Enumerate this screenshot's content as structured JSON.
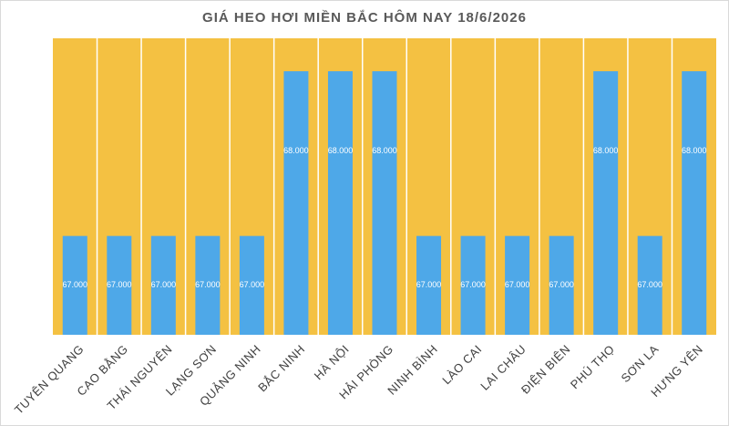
{
  "chart_data": {
    "type": "bar",
    "title": "GIÁ HEO HƠI MIỀN BẮC HÔM NAY 18/6/2026",
    "categories": [
      "TUYÊN QUANG",
      "CAO BẰNG",
      "THÁI NGUYÊN",
      "LẠNG SƠN",
      "QUẢNG NINH",
      "BẮC NINH",
      "HÀ NỘI",
      "HẢI PHÒNG",
      "NINH BÌNH",
      "LÀO CAI",
      "LAI CHÂU",
      "ĐIỆN BIÊN",
      "PHÚ THỌ",
      "SƠN LA",
      "HƯNG YÊN"
    ],
    "values": [
      67000,
      67000,
      67000,
      67000,
      67000,
      68000,
      68000,
      68000,
      67000,
      67000,
      67000,
      67000,
      68000,
      67000,
      68000
    ],
    "value_labels": [
      "67.000",
      "67.000",
      "67.000",
      "67.000",
      "67.000",
      "68.000",
      "68.000",
      "68.000",
      "67.000",
      "67.000",
      "67.000",
      "67.000",
      "68.000",
      "67.000",
      "68.000"
    ],
    "color": "#4ea8e8",
    "background": "#f4c142",
    "ylim": [
      66400,
      68200
    ]
  }
}
